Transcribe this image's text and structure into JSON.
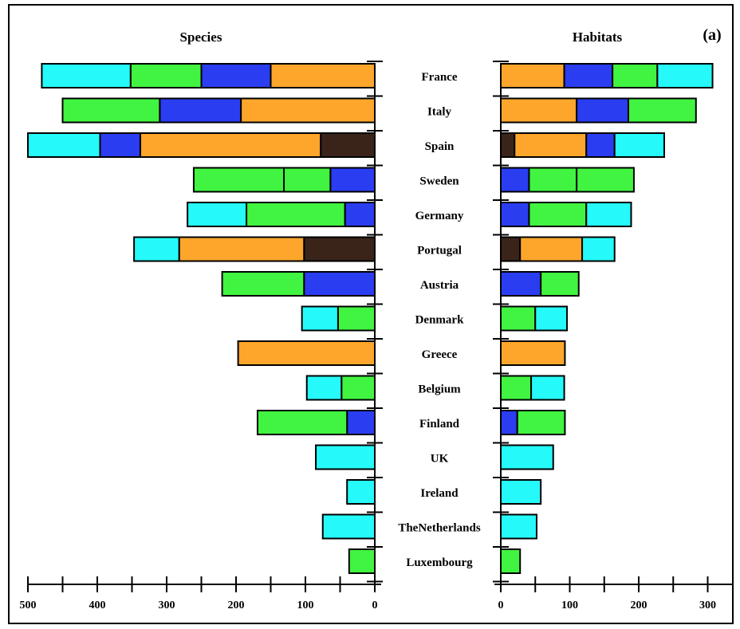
{
  "panel_label": "(a)",
  "colors": {
    "dark": "#3a241a",
    "orange": "#fda62b",
    "blue": "#2a3df0",
    "green": "#41f441",
    "cyan": "#25f9f9"
  },
  "chart_data": [
    {
      "type": "bar",
      "orientation": "horizontal",
      "direction": "leftward",
      "title": "Species",
      "categories": [
        "France",
        "Italy",
        "Spain",
        "Sweden",
        "Germany",
        "Portugal",
        "Austria",
        "Denmark",
        "Greece",
        "Belgium",
        "Finland",
        "UK",
        "Ireland",
        "TheNetherlands",
        "Luxembourg"
      ],
      "segments": [
        [
          {
            "c": "orange",
            "v": 150
          },
          {
            "c": "blue",
            "v": 100
          },
          {
            "c": "green",
            "v": 102
          },
          {
            "c": "cyan",
            "v": 128
          }
        ],
        [
          {
            "c": "orange",
            "v": 193
          },
          {
            "c": "blue",
            "v": 117
          },
          {
            "c": "green",
            "v": 140
          }
        ],
        [
          {
            "c": "dark",
            "v": 78
          },
          {
            "c": "orange",
            "v": 260
          },
          {
            "c": "blue",
            "v": 58
          },
          {
            "c": "cyan",
            "v": 104
          }
        ],
        [
          {
            "c": "blue",
            "v": 64
          },
          {
            "c": "green",
            "v": 67
          },
          {
            "c": "green",
            "v": 130
          }
        ],
        [
          {
            "c": "blue",
            "v": 43
          },
          {
            "c": "green",
            "v": 142
          },
          {
            "c": "cyan",
            "v": 85
          }
        ],
        [
          {
            "c": "dark",
            "v": 102
          },
          {
            "c": "orange",
            "v": 180
          },
          {
            "c": "cyan",
            "v": 65
          }
        ],
        [
          {
            "c": "blue",
            "v": 102
          },
          {
            "c": "green",
            "v": 118
          }
        ],
        [
          {
            "c": "green",
            "v": 53
          },
          {
            "c": "cyan",
            "v": 52
          }
        ],
        [
          {
            "c": "orange",
            "v": 197
          }
        ],
        [
          {
            "c": "green",
            "v": 48
          },
          {
            "c": "cyan",
            "v": 50
          }
        ],
        [
          {
            "c": "blue",
            "v": 40
          },
          {
            "c": "green",
            "v": 129
          }
        ],
        [
          {
            "c": "cyan",
            "v": 85
          }
        ],
        [
          {
            "c": "cyan",
            "v": 40
          }
        ],
        [
          {
            "c": "cyan",
            "v": 75
          }
        ],
        [
          {
            "c": "green",
            "v": 37
          }
        ]
      ],
      "xlim": [
        0,
        500
      ],
      "xticks": [
        500,
        400,
        300,
        200,
        100,
        0
      ]
    },
    {
      "type": "bar",
      "orientation": "horizontal",
      "direction": "rightward",
      "title": "Habitats",
      "categories": [
        "France",
        "Italy",
        "Spain",
        "Sweden",
        "Germany",
        "Portugal",
        "Austria",
        "Denmark",
        "Greece",
        "Belgium",
        "Finland",
        "UK",
        "Ireland",
        "TheNetherlands",
        "Luxembourg"
      ],
      "segments": [
        [
          {
            "c": "orange",
            "v": 92
          },
          {
            "c": "blue",
            "v": 70
          },
          {
            "c": "green",
            "v": 65
          },
          {
            "c": "cyan",
            "v": 80
          }
        ],
        [
          {
            "c": "orange",
            "v": 110
          },
          {
            "c": "blue",
            "v": 75
          },
          {
            "c": "green",
            "v": 98
          }
        ],
        [
          {
            "c": "dark",
            "v": 20
          },
          {
            "c": "orange",
            "v": 104
          },
          {
            "c": "blue",
            "v": 41
          },
          {
            "c": "cyan",
            "v": 72
          }
        ],
        [
          {
            "c": "blue",
            "v": 41
          },
          {
            "c": "green",
            "v": 69
          },
          {
            "c": "green",
            "v": 83
          }
        ],
        [
          {
            "c": "blue",
            "v": 41
          },
          {
            "c": "green",
            "v": 83
          },
          {
            "c": "cyan",
            "v": 65
          }
        ],
        [
          {
            "c": "dark",
            "v": 28
          },
          {
            "c": "orange",
            "v": 90
          },
          {
            "c": "cyan",
            "v": 47
          }
        ],
        [
          {
            "c": "blue",
            "v": 58
          },
          {
            "c": "green",
            "v": 55
          }
        ],
        [
          {
            "c": "green",
            "v": 50
          },
          {
            "c": "cyan",
            "v": 46
          }
        ],
        [
          {
            "c": "orange",
            "v": 93
          }
        ],
        [
          {
            "c": "green",
            "v": 44
          },
          {
            "c": "cyan",
            "v": 48
          }
        ],
        [
          {
            "c": "blue",
            "v": 24
          },
          {
            "c": "green",
            "v": 69
          }
        ],
        [
          {
            "c": "cyan",
            "v": 76
          }
        ],
        [
          {
            "c": "cyan",
            "v": 58
          }
        ],
        [
          {
            "c": "cyan",
            "v": 52
          }
        ],
        [
          {
            "c": "green",
            "v": 28
          }
        ]
      ],
      "xlim": [
        0,
        350
      ],
      "xticks": [
        0,
        100,
        200,
        300
      ]
    }
  ]
}
